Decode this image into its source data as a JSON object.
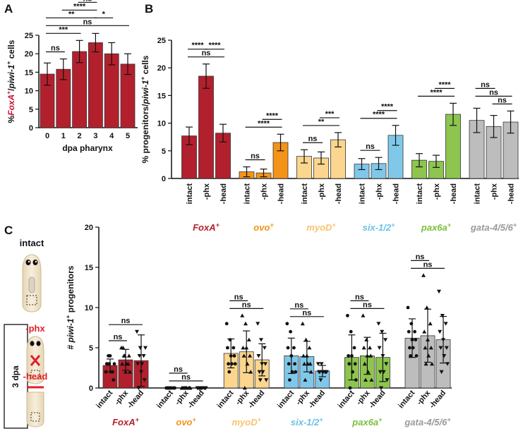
{
  "chart_data": [
    {
      "panel": "A",
      "type": "bar",
      "categories": [
        "0",
        "1",
        "2",
        "3",
        "4",
        "5"
      ],
      "values": [
        14.5,
        15.8,
        20.6,
        23,
        20,
        17.2
      ],
      "errors": [
        3,
        2.8,
        3,
        2.5,
        3,
        2.8
      ],
      "color": "#b3202d",
      "ylim": [
        0,
        25
      ],
      "yticks": [
        0,
        5,
        10,
        15,
        20,
        25
      ],
      "x_label": "dpa pharynx",
      "y_label": "%FoxA+/piwi-1+ cells",
      "y_label_italic": [
        "FoxA",
        "piwi-1"
      ],
      "y_label_highlight": {
        "text": "FoxA+",
        "color": "#c8102e"
      },
      "annotations": [
        {
          "from": "0",
          "to": "5",
          "label": "ns"
        },
        {
          "from": "0",
          "to": "3",
          "label": "**"
        },
        {
          "from": "1",
          "to": "3",
          "label": "****"
        },
        {
          "from": "2",
          "to": "3",
          "label": "ns"
        },
        {
          "from": "3",
          "to": "4",
          "label": "*"
        },
        {
          "from": "0",
          "to": "2",
          "label": "***"
        },
        {
          "from": "0",
          "to": "1",
          "label": "ns"
        }
      ]
    },
    {
      "panel": "B",
      "type": "grouped_bar",
      "categories": [
        "FoxA+",
        "ovo+",
        "myoD+",
        "six-1/2+",
        "pax6a+",
        "gata-4/5/6+"
      ],
      "colors": [
        "#b3202d",
        "#f39419",
        "#fcd68e",
        "#80c8ea",
        "#8dc54e",
        "#bdbdbd"
      ],
      "label_colors": [
        "#b3202d",
        "#f39419",
        "#f7c46c",
        "#6cc0e6",
        "#7cbf3c",
        "#9a9a9a"
      ],
      "series": [
        {
          "name": "intact",
          "values": [
            7.7,
            1.2,
            4.0,
            2.6,
            3.3,
            10.5
          ],
          "errors": [
            1.6,
            0.9,
            1.2,
            1.0,
            1.2,
            2.2
          ]
        },
        {
          "name": "-phx",
          "values": [
            18.5,
            1.0,
            3.7,
            2.7,
            3.1,
            9.4
          ],
          "errors": [
            2.2,
            0.7,
            1.1,
            1.1,
            1.1,
            2.0
          ]
        },
        {
          "name": "-head",
          "values": [
            8.2,
            6.5,
            7.0,
            7.8,
            11.6,
            10.2
          ],
          "errors": [
            1.6,
            1.5,
            1.3,
            1.8,
            2.0,
            2.0
          ]
        }
      ],
      "ylim": [
        0,
        25
      ],
      "yticks": [
        0,
        5,
        10,
        15,
        20,
        25
      ],
      "y_label": "% progenitors/piwi-1+ cells",
      "y_label_italic": [
        "piwi-1"
      ],
      "annotations": [
        {
          "category": "FoxA+",
          "from": "intact",
          "to": "-head",
          "label": "ns"
        },
        {
          "category": "FoxA+",
          "from": "intact",
          "to": "-phx",
          "label": "****"
        },
        {
          "category": "FoxA+",
          "from": "-phx",
          "to": "-head",
          "label": "****"
        },
        {
          "category": "ovo+",
          "from": "intact",
          "to": "-head",
          "label": "****"
        },
        {
          "category": "ovo+",
          "from": "intact",
          "to": "-phx",
          "label": "ns"
        },
        {
          "category": "ovo+",
          "from": "-phx",
          "to": "-head",
          "label": "****"
        },
        {
          "category": "myoD+",
          "from": "intact",
          "to": "-head",
          "label": "**"
        },
        {
          "category": "myoD+",
          "from": "intact",
          "to": "-phx",
          "label": "ns"
        },
        {
          "category": "myoD+",
          "from": "-phx",
          "to": "-head",
          "label": "***"
        },
        {
          "category": "six-1/2+",
          "from": "intact",
          "to": "-head",
          "label": "****"
        },
        {
          "category": "six-1/2+",
          "from": "intact",
          "to": "-phx",
          "label": "ns"
        },
        {
          "category": "six-1/2+",
          "from": "-phx",
          "to": "-head",
          "label": "****"
        },
        {
          "category": "pax6a+",
          "from": "intact",
          "to": "-head",
          "label": "****"
        },
        {
          "category": "pax6a+",
          "from": "-phx",
          "to": "-head",
          "label": "****"
        },
        {
          "category": "gata-4/5/6+",
          "from": "intact",
          "to": "-head",
          "label": "ns"
        },
        {
          "category": "gata-4/5/6+",
          "from": "intact",
          "to": "-phx",
          "label": "ns"
        },
        {
          "category": "gata-4/5/6+",
          "from": "-phx",
          "to": "-head",
          "label": "ns"
        }
      ]
    },
    {
      "panel": "C",
      "type": "grouped_bar_points",
      "categories": [
        "FoxA+",
        "ovo+",
        "myoD+",
        "six-1/2+",
        "pax6a+",
        "gata-4/5/6+"
      ],
      "colors": [
        "#b3202d",
        "#f39419",
        "#fcd68e",
        "#80c8ea",
        "#8dc54e",
        "#bdbdbd"
      ],
      "label_colors": [
        "#b3202d",
        "#f39419",
        "#f7c46c",
        "#6cc0e6",
        "#7cbf3c",
        "#9a9a9a"
      ],
      "series": [
        {
          "name": "intact",
          "marker": "circle",
          "values": [
            2.8,
            0,
            4.3,
            4.0,
            3.8,
            6.2
          ],
          "errors": [
            0.8,
            0,
            1.8,
            2.2,
            2.8,
            2.4
          ],
          "points": [
            [
              2,
              3,
              2,
              3,
              4,
              1,
              3,
              2,
              3,
              4
            ],
            [
              0,
              0,
              0,
              0,
              0,
              0,
              0,
              0,
              0,
              0
            ],
            [
              8,
              6,
              5,
              5,
              4,
              4,
              3,
              3,
              3,
              2
            ],
            [
              8,
              7,
              5,
              5,
              4,
              3,
              3,
              2,
              2,
              1
            ],
            [
              9,
              7,
              5,
              4,
              4,
              3,
              3,
              2,
              1,
              0
            ],
            [
              10,
              8,
              7,
              7,
              6,
              6,
              5,
              5,
              4,
              4
            ]
          ]
        },
        {
          "name": "-phx",
          "marker": "triangle",
          "values": [
            3.5,
            0,
            4.5,
            3.9,
            4.0,
            6.5
          ],
          "errors": [
            1.3,
            0,
            2.6,
            1.9,
            2.3,
            3.3
          ],
          "points": [
            [
              5,
              4,
              3,
              3,
              2,
              4,
              5,
              3,
              2,
              4
            ],
            [
              0,
              0,
              0,
              0,
              0,
              0,
              0,
              0,
              0,
              0
            ],
            [
              9,
              8,
              6,
              5,
              5,
              4,
              4,
              3,
              2,
              0
            ],
            [
              8,
              6,
              5,
              4,
              4,
              3,
              3,
              3,
              2,
              1
            ],
            [
              9,
              6,
              5,
              5,
              4,
              4,
              3,
              2,
              1,
              1
            ],
            [
              14,
              10,
              8,
              7,
              6,
              5,
              5,
              4,
              3,
              3
            ]
          ]
        },
        {
          "name": "-head",
          "marker": "triangle-down",
          "values": [
            3.4,
            0,
            3.5,
            2.1,
            3.8,
            6.0
          ],
          "errors": [
            3.2,
            0,
            2.0,
            0.7,
            3.0,
            2.9
          ],
          "points": [
            [
              7,
              5,
              4,
              3,
              2,
              1,
              0,
              3,
              5,
              4
            ],
            [
              0,
              0,
              0,
              0,
              0,
              0,
              0,
              0,
              0,
              0
            ],
            [
              8,
              6,
              5,
              4,
              3,
              3,
              2,
              2,
              1,
              1
            ],
            [
              3,
              3,
              2,
              2,
              2,
              2,
              2,
              2,
              2,
              1
            ],
            [
              8,
              7,
              6,
              5,
              4,
              3,
              2,
              2,
              1,
              0
            ],
            [
              12,
              9,
              8,
              7,
              6,
              5,
              5,
              4,
              3,
              2
            ]
          ]
        }
      ],
      "ylim": [
        0,
        20
      ],
      "yticks": [
        0,
        5,
        10,
        15,
        20
      ],
      "y_label": "# piwi-1+ progenitors",
      "y_label_italic": [
        "piwi-1"
      ],
      "annotations": [
        {
          "category": "FoxA+",
          "from": "intact",
          "to": "-head",
          "label": "ns"
        },
        {
          "category": "FoxA+",
          "from": "intact",
          "to": "-phx",
          "label": "ns"
        },
        {
          "category": "ovo+",
          "from": "intact",
          "to": "-head",
          "label": "ns"
        },
        {
          "category": "ovo+",
          "from": "intact",
          "to": "-phx",
          "label": "ns"
        },
        {
          "category": "myoD+",
          "from": "intact",
          "to": "-head",
          "label": "ns"
        },
        {
          "category": "myoD+",
          "from": "intact",
          "to": "-phx",
          "label": "ns"
        },
        {
          "category": "six-1/2+",
          "from": "intact",
          "to": "-head",
          "label": "ns"
        },
        {
          "category": "six-1/2+",
          "from": "intact",
          "to": "-phx",
          "label": "ns"
        },
        {
          "category": "pax6a+",
          "from": "intact",
          "to": "-head",
          "label": "ns"
        },
        {
          "category": "pax6a+",
          "from": "intact",
          "to": "-phx",
          "label": "ns"
        },
        {
          "category": "gata-4/5/6+",
          "from": "intact",
          "to": "-head",
          "label": "ns"
        },
        {
          "category": "gata-4/5/6+",
          "from": "intact",
          "to": "-phx",
          "label": "ns"
        }
      ]
    }
  ],
  "schematic": {
    "conditions": [
      "intact",
      "-phx",
      "-head"
    ],
    "timepoint": "3 dpa"
  }
}
